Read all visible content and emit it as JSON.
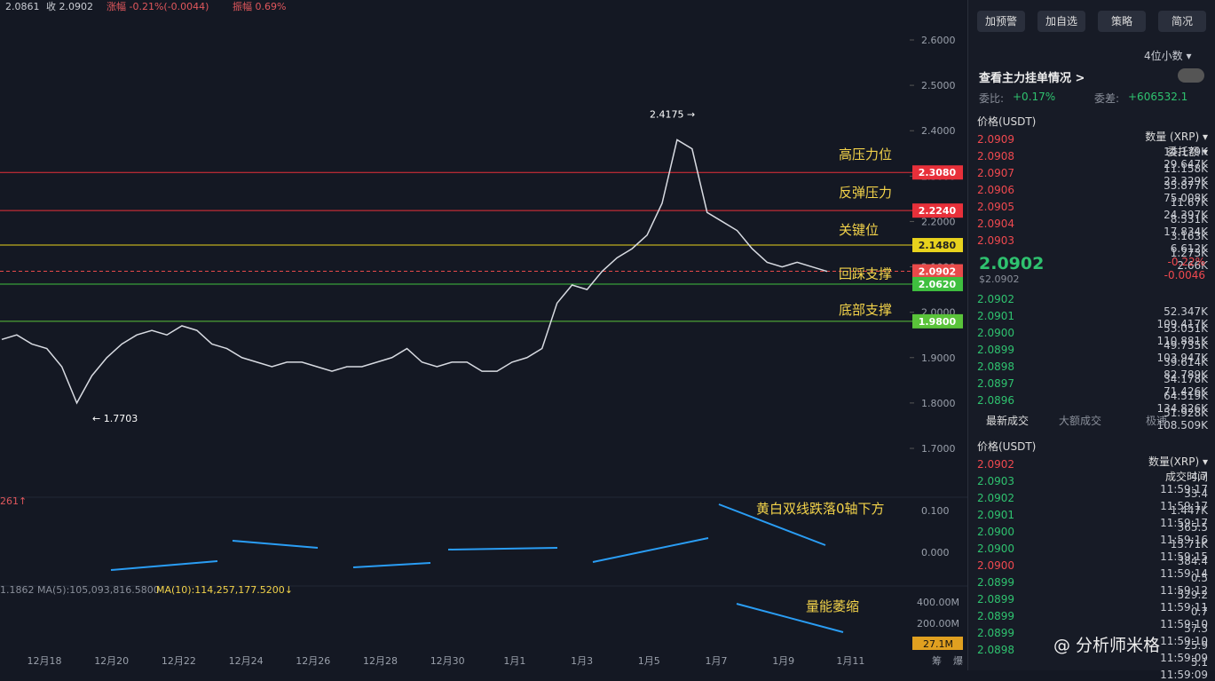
{
  "chart": {
    "stats": [
      "收 2.0902",
      "涨幅 -0.21%(-0.0044)",
      "振幅 0.69%"
    ],
    "stats_prefix": "2.0861",
    "yticks": [
      {
        "value": 2.6,
        "label": "2.6000"
      },
      {
        "value": 2.5,
        "label": "2.5000"
      },
      {
        "value": 2.4,
        "label": "2.4000"
      },
      {
        "value": 2.3,
        "label": "2.3000"
      },
      {
        "value": 2.2,
        "label": "2.2000"
      },
      {
        "value": 2.1,
        "label": "2.1000"
      },
      {
        "value": 2.0,
        "label": "2.0000"
      },
      {
        "value": 1.9,
        "label": "1.9000"
      },
      {
        "value": 1.8,
        "label": "1.8000"
      },
      {
        "value": 1.7,
        "label": "1.7000"
      }
    ],
    "levels": [
      {
        "value": 2.308,
        "label": "2.3080",
        "color": "#e8303a",
        "note": "高压力位"
      },
      {
        "value": 2.224,
        "label": "2.2240",
        "color": "#e8303a",
        "note": "反弹压力"
      },
      {
        "value": 2.148,
        "label": "2.1480",
        "color": "#e8d21d",
        "note": "关键位"
      },
      {
        "value": 2.0902,
        "label": "2.0902",
        "color": "#e84a4a",
        "note": "回踩支撑"
      },
      {
        "value": 2.062,
        "label": "2.0620",
        "color": "#3fbf3f"
      },
      {
        "value": 1.98,
        "label": "1.9800",
        "color": "#5ac33a",
        "note": "底部支撑"
      }
    ],
    "high": {
      "value": 2.4175,
      "label": "2.4175 →"
    },
    "low": {
      "value": 1.7703,
      "label": "← 1.7703"
    },
    "closes": [
      1.94,
      1.95,
      1.93,
      1.92,
      1.88,
      1.8,
      1.86,
      1.9,
      1.93,
      1.95,
      1.96,
      1.95,
      1.97,
      1.96,
      1.93,
      1.92,
      1.9,
      1.89,
      1.88,
      1.89,
      1.89,
      1.88,
      1.87,
      1.88,
      1.88,
      1.89,
      1.9,
      1.92,
      1.89,
      1.88,
      1.89,
      1.89,
      1.87,
      1.87,
      1.89,
      1.9,
      1.92,
      2.02,
      2.06,
      2.05,
      2.09,
      2.12,
      2.14,
      2.17,
      2.24,
      2.38,
      2.36,
      2.22,
      2.2,
      2.18,
      2.14,
      2.11,
      2.1,
      2.11,
      2.1,
      2.09
    ],
    "dates": [
      "12月18",
      "12月20",
      "12月22",
      "12月24",
      "12月26",
      "12月28",
      "12月30",
      "1月1",
      "1月3",
      "1月5",
      "1月7",
      "1月9",
      "1月11"
    ],
    "macd_note": "黄白双线跌落0轴下方",
    "macd_ticks": [
      "0.100",
      "0.000"
    ],
    "macd_left": "261↑",
    "vol_note": "量能萎缩",
    "vol_ticks": [
      "400.00M",
      "200.00M"
    ],
    "vol_current": "27.1M",
    "ma5": "1.1862  MA(5):105,093,816.5800",
    "ma10": "MA(10):114,257,177.5200↓",
    "footer": [
      "筹",
      "爆"
    ]
  },
  "panel": {
    "buttons": [
      "加预警",
      "加自选",
      "策略",
      "简况"
    ],
    "decimals": "4位小数 ▾",
    "main_orders": "查看主力挂单情况 >",
    "ratio_label": "委比:",
    "ratio": "+0.17%",
    "diff_label": "委差:",
    "diff": "+606532.1",
    "book_header": [
      "价格(USDT)",
      "数量 (XRP) ▾",
      "委托额 ▾"
    ],
    "asks": [
      [
        "2.0909",
        "14.179K",
        "29.647K"
      ],
      [
        "2.0908",
        "11.158K",
        "23.329K"
      ],
      [
        "2.0907",
        "35.877K",
        "75.008K"
      ],
      [
        "2.0906",
        "11.67K",
        "24.397K"
      ],
      [
        "2.0905",
        "8.531K",
        "17.834K"
      ],
      [
        "2.0904",
        "3.163K",
        "6.612K"
      ],
      [
        "2.0903",
        "1.273K",
        "2.66K"
      ]
    ],
    "last": "2.0902",
    "last_usd": "$2.0902",
    "change_pct": "-0.22%",
    "change": "-0.0046",
    "bids": [
      [
        "2.0902",
        "52.347K",
        "109.417K"
      ],
      [
        "2.0901",
        "53.051K",
        "110.881K"
      ],
      [
        "2.0900",
        "49.735K",
        "103.947K"
      ],
      [
        "2.0899",
        "39.614K",
        "82.789K"
      ],
      [
        "2.0898",
        "34.178K",
        "71.426K"
      ],
      [
        "2.0897",
        "64.519K",
        "134.826K"
      ],
      [
        "2.0896",
        "51.928K",
        "108.509K"
      ]
    ],
    "tabs": [
      "最新成交",
      "大额成交",
      "极速"
    ],
    "trade_header": [
      "价格(USDT)",
      "数量(XRP) ▾",
      "成交时间"
    ],
    "trades": [
      [
        "2.0902",
        "4.7",
        "11:59:17"
      ],
      [
        "2.0903",
        "33.4",
        "11:59:17"
      ],
      [
        "2.0902",
        "1.447K",
        "11:59:17"
      ],
      [
        "2.0901",
        "365.5",
        "11:59:16"
      ],
      [
        "2.0900",
        "15.71K",
        "11:59:15"
      ],
      [
        "2.0900",
        "384.4",
        "11:59:14"
      ],
      [
        "2.0900",
        "0.5",
        "11:59:12"
      ],
      [
        "2.0899",
        "529.2",
        "11:59:11"
      ],
      [
        "2.0899",
        "0.7",
        "11:59:10"
      ],
      [
        "2.0899",
        "57.3",
        "11:59:10"
      ],
      [
        "2.0899",
        "25.9",
        "11:59:09"
      ],
      [
        "2.0898",
        "5.1",
        "11:59:09"
      ]
    ],
    "trade_side": [
      "sell",
      "buy",
      "buy",
      "buy",
      "buy",
      "buy",
      "sell",
      "buy",
      "buy",
      "buy",
      "buy",
      "buy"
    ],
    "watermark": "@ 分析师米格"
  }
}
